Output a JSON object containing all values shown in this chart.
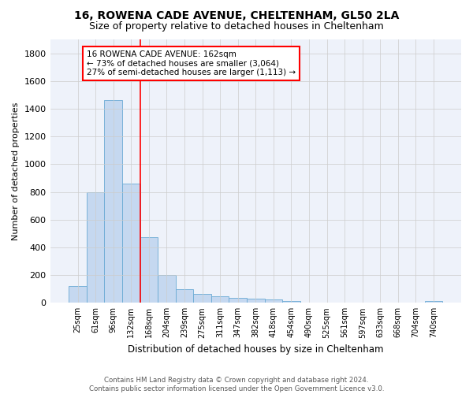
{
  "title": "16, ROWENA CADE AVENUE, CHELTENHAM, GL50 2LA",
  "subtitle": "Size of property relative to detached houses in Cheltenham",
  "xlabel": "Distribution of detached houses by size in Cheltenham",
  "ylabel": "Number of detached properties",
  "footer_line1": "Contains HM Land Registry data © Crown copyright and database right 2024.",
  "footer_line2": "Contains public sector information licensed under the Open Government Licence v3.0.",
  "categories": [
    "25sqm",
    "61sqm",
    "96sqm",
    "132sqm",
    "168sqm",
    "204sqm",
    "239sqm",
    "275sqm",
    "311sqm",
    "347sqm",
    "382sqm",
    "418sqm",
    "454sqm",
    "490sqm",
    "525sqm",
    "561sqm",
    "597sqm",
    "633sqm",
    "668sqm",
    "704sqm",
    "740sqm"
  ],
  "values": [
    120,
    795,
    1462,
    862,
    471,
    200,
    100,
    65,
    50,
    35,
    30,
    25,
    15,
    0,
    0,
    0,
    0,
    0,
    0,
    0,
    15
  ],
  "bar_color": "#c5d8f0",
  "bar_edge_color": "#6aaad4",
  "property_label": "16 ROWENA CADE AVENUE: 162sqm",
  "pct_smaller": 73,
  "count_smaller": 3064,
  "pct_larger_semi": 27,
  "count_larger_semi": 1113,
  "red_line_x": 3.5,
  "ylim": [
    0,
    1900
  ],
  "yticks": [
    0,
    200,
    400,
    600,
    800,
    1000,
    1200,
    1400,
    1600,
    1800
  ],
  "bg_color": "#eef2fa",
  "grid_color": "#cccccc",
  "title_fontsize": 10,
  "subtitle_fontsize": 9,
  "annotation_fontsize": 7.5
}
